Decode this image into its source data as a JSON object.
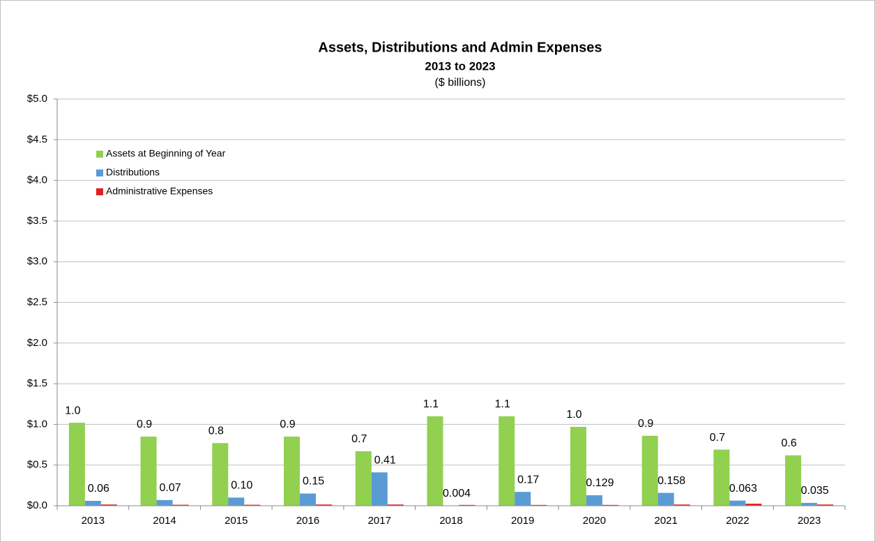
{
  "chart_data": {
    "type": "bar",
    "title": "Assets, Distributions and Admin Expenses",
    "subtitle": "2013 to 2023",
    "unit_note": "($ billions)",
    "categories": [
      "2013",
      "2014",
      "2015",
      "2016",
      "2017",
      "2018",
      "2019",
      "2020",
      "2021",
      "2022",
      "2023"
    ],
    "series": [
      {
        "name": "Assets at Beginning of Year",
        "color": "#92d050",
        "values": [
          1.02,
          0.85,
          0.77,
          0.85,
          0.67,
          1.1,
          1.1,
          0.97,
          0.86,
          0.69,
          0.62
        ],
        "value_labels": [
          "1.0",
          "0.9",
          "0.8",
          "0.9",
          "0.7",
          "1.1",
          "1.1",
          "1.0",
          "0.9",
          "0.7",
          "0.6"
        ]
      },
      {
        "name": "Distributions",
        "color": "#5b9bd5",
        "values": [
          0.06,
          0.07,
          0.1,
          0.15,
          0.41,
          0.004,
          0.17,
          0.129,
          0.158,
          0.063,
          0.035
        ],
        "value_labels": [
          "0.06",
          "0.07",
          "0.10",
          "0.15",
          "0.41",
          "0.004",
          "0.17",
          "0.129",
          "0.158",
          "0.063",
          "0.035"
        ]
      },
      {
        "name": "Administrative Expenses",
        "color": "#e02020",
        "values": [
          0.015,
          0.012,
          0.012,
          0.015,
          0.015,
          0.01,
          0.01,
          0.01,
          0.015,
          0.025,
          0.015
        ]
      }
    ],
    "ylim": [
      0,
      5
    ],
    "yticks": [
      {
        "value": 0,
        "label": "$0.0"
      },
      {
        "value": 0.5,
        "label": "$0.5"
      },
      {
        "value": 1,
        "label": "$1.0"
      },
      {
        "value": 1.5,
        "label": "$1.5"
      },
      {
        "value": 2,
        "label": "$2.0"
      },
      {
        "value": 2.5,
        "label": "$2.5"
      },
      {
        "value": 3,
        "label": "$3.0"
      },
      {
        "value": 3.5,
        "label": "$3.5"
      },
      {
        "value": 4,
        "label": "$4.0"
      },
      {
        "value": 4.5,
        "label": "$4.5"
      },
      {
        "value": 5,
        "label": "$5.0"
      }
    ],
    "grid": true,
    "legend": "top-left"
  }
}
